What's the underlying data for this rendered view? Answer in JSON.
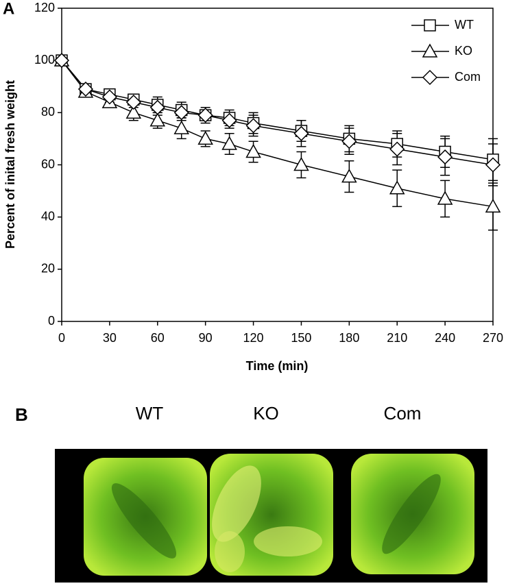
{
  "chart_data": {
    "type": "line",
    "x_label": "Time (min)",
    "y_label": "Percent of inital fresh weight",
    "x": [
      0,
      15,
      30,
      45,
      60,
      75,
      90,
      105,
      120,
      150,
      180,
      210,
      240,
      270
    ],
    "xlim": [
      0,
      270
    ],
    "xticks": [
      0,
      30,
      60,
      90,
      120,
      150,
      180,
      210,
      240,
      270
    ],
    "ylim": [
      0,
      120
    ],
    "yticks": [
      0,
      20,
      40,
      60,
      80,
      100,
      120
    ],
    "legend": "upper right",
    "series": [
      {
        "name": "WT",
        "color": "#000000",
        "marker": "square",
        "values": [
          100,
          89,
          87,
          85,
          83,
          81,
          79,
          78,
          76,
          73,
          70,
          68,
          65,
          62
        ],
        "errors": [
          0,
          2,
          2,
          2,
          3,
          3,
          2,
          3,
          4,
          4,
          5,
          5,
          6,
          8
        ]
      },
      {
        "name": "KO",
        "color": "#000000",
        "marker": "triangle",
        "values": [
          100,
          88,
          84,
          80,
          77,
          74,
          70,
          68,
          65,
          60,
          55.5,
          51,
          47,
          44
        ],
        "errors": [
          0,
          1,
          2,
          3,
          3,
          4,
          3,
          4,
          4,
          5,
          6,
          7,
          7,
          9
        ]
      },
      {
        "name": "Com",
        "color": "#000000",
        "marker": "diamond",
        "values": [
          100,
          89,
          86,
          84,
          82,
          80,
          79,
          77,
          75,
          72,
          69,
          66,
          63,
          60
        ],
        "errors": [
          0,
          2,
          2,
          2,
          3,
          3,
          3,
          3,
          4,
          5,
          5,
          6,
          7,
          8
        ]
      }
    ]
  },
  "figure": {
    "panel_a": "A",
    "panel_b": "B",
    "photo_labels": [
      "WT",
      "KO",
      "Com"
    ]
  }
}
